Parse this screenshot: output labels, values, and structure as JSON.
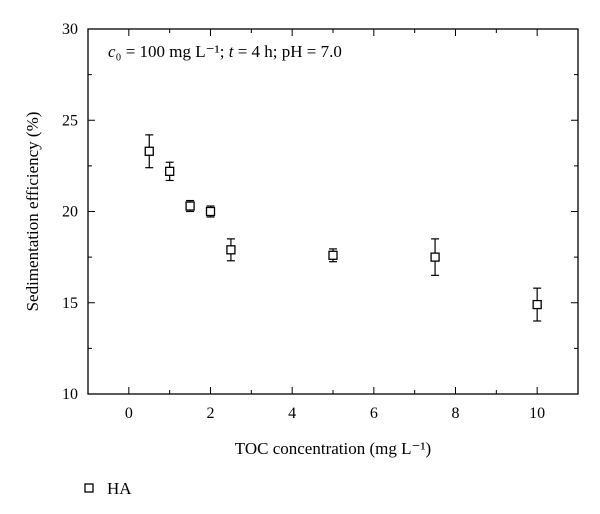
{
  "chart_data": {
    "type": "scatter",
    "xlabel": "TOC concentration (mg L⁻¹)",
    "ylabel": "Sedimentation efficiency (%)",
    "annotation": "c₀ = 100 mg L⁻¹; t = 4 h; pH = 7.0",
    "xlim": [
      -1,
      11
    ],
    "ylim": [
      10,
      30
    ],
    "x_ticks": [
      0,
      2,
      4,
      6,
      8,
      10
    ],
    "y_ticks": [
      10,
      15,
      20,
      25,
      30
    ],
    "legend_position": "bottom-left",
    "series": [
      {
        "name": "HA",
        "marker": "open-square",
        "color": "#000000",
        "x": [
          0.5,
          1,
          1.5,
          2,
          2.5,
          5,
          7.5,
          10
        ],
        "y": [
          23.3,
          22.2,
          20.3,
          20.0,
          17.9,
          17.6,
          17.5,
          14.9
        ],
        "error": [
          0.9,
          0.5,
          0.3,
          0.3,
          0.6,
          0.35,
          1.0,
          0.9
        ]
      }
    ]
  }
}
